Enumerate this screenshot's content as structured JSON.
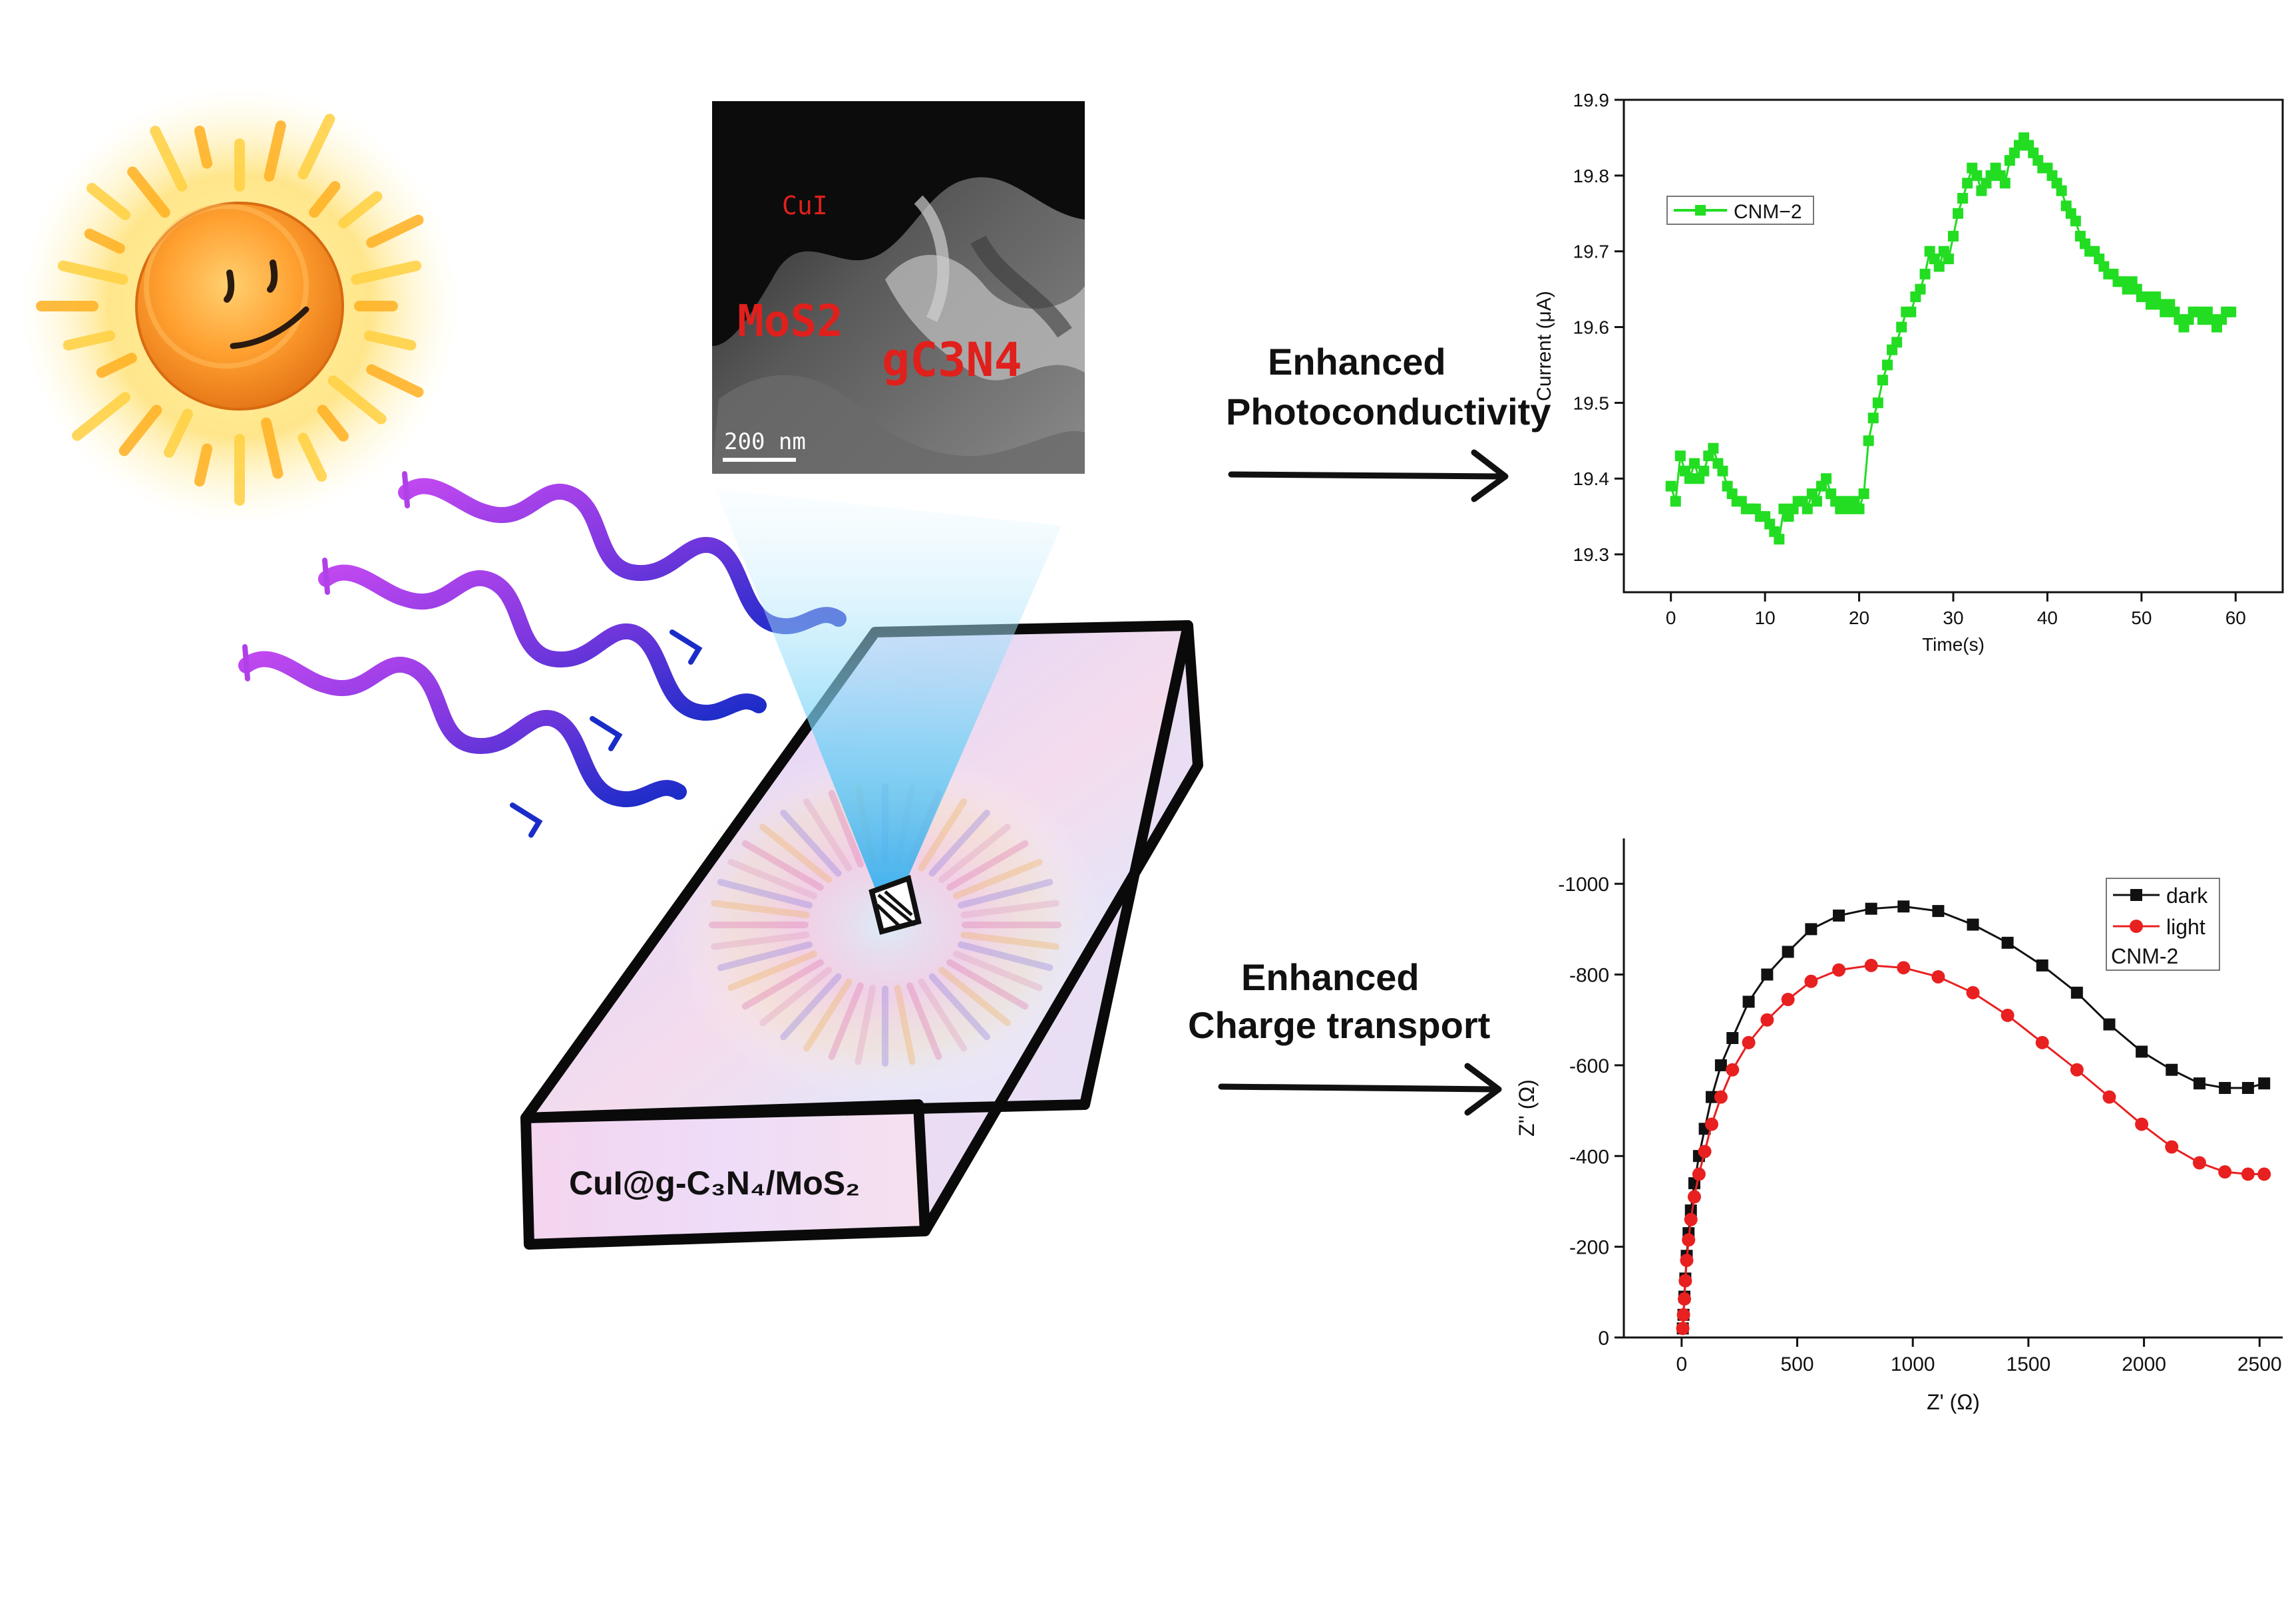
{
  "tem_image": {
    "labels": {
      "cui": "CuI",
      "mos2": "MoS2",
      "gc3n4": "gC3N4"
    },
    "scale_bar": "200 nm"
  },
  "material_label": "CuI@g-C₃N₄/MoS₂",
  "arrows": {
    "photo": {
      "line1": "Enhanced",
      "line2": "Photoconductivity"
    },
    "charge": {
      "line1": "Enhanced",
      "line2": "Charge transport"
    }
  },
  "icons": [
    "sun-icon",
    "light-wave-icon",
    "arrow-right-icon",
    "microscope-probe-icon"
  ],
  "colors": {
    "green_series": "#22dd22",
    "dark_series": "#111111",
    "light_series": "#e82020",
    "tem_label": "#e0201c",
    "wave_start": "#b040e8",
    "wave_end": "#2030d0"
  },
  "chart_data": [
    {
      "type": "scatter",
      "xlabel": "Time(s)",
      "ylabel": "Current (μA)",
      "xlim": [
        -5,
        65
      ],
      "ylim": [
        19.25,
        19.9
      ],
      "xticks": [
        0,
        10,
        20,
        30,
        40,
        50,
        60
      ],
      "yticks": [
        19.3,
        19.4,
        19.5,
        19.6,
        19.7,
        19.8,
        19.9
      ],
      "legend": "top-left",
      "series": [
        {
          "name": "CNM−2",
          "color": "#22dd22",
          "x": [
            0,
            0.5,
            1,
            1.5,
            2,
            2.5,
            3,
            3.5,
            4,
            4.5,
            5,
            5.5,
            6,
            6.5,
            7,
            7.5,
            8,
            8.5,
            9,
            9.5,
            10,
            10.5,
            11,
            11.5,
            12,
            12.5,
            13,
            13.5,
            14,
            14.5,
            15,
            15.5,
            16,
            16.5,
            17,
            17.5,
            18,
            18.5,
            19,
            19.5,
            20,
            20.5,
            21,
            21.5,
            22,
            22.5,
            23,
            23.5,
            24,
            24.5,
            25,
            25.5,
            26,
            26.5,
            27,
            27.5,
            28,
            28.5,
            29,
            29.5,
            30,
            30.5,
            31,
            31.5,
            32,
            32.5,
            33,
            33.5,
            34,
            34.5,
            35,
            35.5,
            36,
            36.5,
            37,
            37.5,
            38,
            38.5,
            39,
            39.5,
            40,
            40.5,
            41,
            41.5,
            42,
            42.5,
            43,
            43.5,
            44,
            44.5,
            45,
            45.5,
            46,
            46.5,
            47,
            47.5,
            48,
            48.5,
            49,
            49.5,
            50,
            50.5,
            51,
            51.5,
            52,
            52.5,
            53,
            53.5,
            54,
            54.5,
            55,
            55.5,
            56,
            56.5,
            57,
            57.5,
            58,
            58.5,
            59,
            59.5
          ],
          "y": [
            19.39,
            19.37,
            19.43,
            19.41,
            19.4,
            19.42,
            19.4,
            19.41,
            19.43,
            19.44,
            19.42,
            19.41,
            19.39,
            19.38,
            19.37,
            19.37,
            19.36,
            19.36,
            19.36,
            19.35,
            19.35,
            19.34,
            19.33,
            19.32,
            19.36,
            19.35,
            19.36,
            19.37,
            19.37,
            19.36,
            19.38,
            19.37,
            19.39,
            19.4,
            19.38,
            19.37,
            19.36,
            19.37,
            19.36,
            19.37,
            19.36,
            19.38,
            19.45,
            19.48,
            19.5,
            19.53,
            19.55,
            19.57,
            19.58,
            19.6,
            19.62,
            19.62,
            19.64,
            19.65,
            19.67,
            19.7,
            19.69,
            19.68,
            19.7,
            19.69,
            19.72,
            19.75,
            19.77,
            19.79,
            19.81,
            19.8,
            19.78,
            19.79,
            19.8,
            19.81,
            19.8,
            19.79,
            19.82,
            19.83,
            19.84,
            19.85,
            19.84,
            19.83,
            19.82,
            19.81,
            19.81,
            19.8,
            19.79,
            19.78,
            19.76,
            19.75,
            19.74,
            19.72,
            19.71,
            19.7,
            19.7,
            19.69,
            19.68,
            19.67,
            19.67,
            19.66,
            19.66,
            19.65,
            19.66,
            19.65,
            19.64,
            19.64,
            19.63,
            19.64,
            19.63,
            19.62,
            19.63,
            19.62,
            19.61,
            19.6,
            19.61,
            19.62,
            19.62,
            19.61,
            19.62,
            19.61,
            19.6,
            19.61,
            19.62,
            19.62
          ]
        }
      ]
    },
    {
      "type": "line",
      "xlabel": "Z' (Ω)",
      "ylabel": "Z'' (Ω)",
      "xlim": [
        -250,
        2600
      ],
      "ylim": [
        0,
        -1100
      ],
      "xticks": [
        0,
        500,
        1000,
        1500,
        2000,
        2500
      ],
      "yticks": [
        0,
        -200,
        -400,
        -600,
        -800,
        -1000
      ],
      "legend": "top-right",
      "legend_note": "CNM-2",
      "series": [
        {
          "name": "dark",
          "color": "#111111",
          "marker": "square",
          "x": [
            5,
            8,
            12,
            16,
            22,
            30,
            40,
            55,
            75,
            100,
            130,
            170,
            220,
            290,
            370,
            460,
            560,
            680,
            820,
            960,
            1110,
            1260,
            1410,
            1560,
            1710,
            1850,
            1990,
            2120,
            2240,
            2350,
            2450,
            2520
          ],
          "y": [
            -20,
            -50,
            -90,
            -130,
            -180,
            -230,
            -280,
            -340,
            -400,
            -460,
            -530,
            -600,
            -660,
            -740,
            -800,
            -850,
            -900,
            -930,
            -945,
            -950,
            -940,
            -910,
            -870,
            -820,
            -760,
            -690,
            -630,
            -590,
            -560,
            -550,
            -550,
            -560
          ]
        },
        {
          "name": "light",
          "color": "#e82020",
          "marker": "circle",
          "x": [
            5,
            8,
            12,
            16,
            22,
            30,
            40,
            55,
            75,
            100,
            130,
            170,
            220,
            290,
            370,
            460,
            560,
            680,
            820,
            960,
            1110,
            1260,
            1410,
            1560,
            1710,
            1850,
            1990,
            2120,
            2240,
            2350,
            2450,
            2520
          ],
          "y": [
            -20,
            -50,
            -85,
            -125,
            -170,
            -215,
            -260,
            -310,
            -360,
            -410,
            -470,
            -530,
            -590,
            -650,
            -700,
            -745,
            -785,
            -810,
            -820,
            -815,
            -795,
            -760,
            -710,
            -650,
            -590,
            -530,
            -470,
            -420,
            -385,
            -365,
            -360,
            -360
          ]
        }
      ]
    }
  ]
}
